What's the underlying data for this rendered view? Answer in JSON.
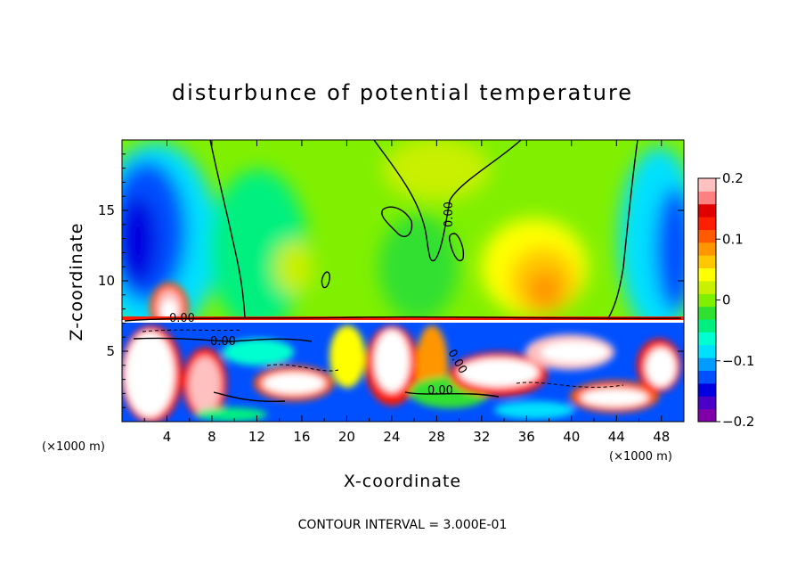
{
  "chart_data": {
    "type": "heatmap",
    "title": "disturbunce of potential temperature",
    "xlabel": "X-coordinate",
    "ylabel": "Z-coordinate",
    "x_unit": "(×1000 m)",
    "xlim": [
      0,
      50
    ],
    "ylim": [
      0,
      20
    ],
    "x_ticks": [
      "4",
      "8",
      "12",
      "16",
      "20",
      "24",
      "28",
      "32",
      "36",
      "40",
      "44",
      "48"
    ],
    "y_ticks": [
      "5",
      "10",
      "15"
    ],
    "colorbar": {
      "range": [
        -0.2,
        0.2
      ],
      "labels": [
        "0.2",
        "0.1",
        "0",
        "−0.1",
        "−0.2"
      ],
      "colors": [
        "#7f00a8",
        "#4b00c8",
        "#0000e0",
        "#0050ff",
        "#009cff",
        "#00e0ff",
        "#00ffd0",
        "#00f080",
        "#30e030",
        "#80f000",
        "#c8f000",
        "#ffff00",
        "#ffc800",
        "#ff9600",
        "#ff5a00",
        "#ff1e00",
        "#e00000",
        "#ff8080",
        "#ffc0c0"
      ]
    },
    "contour_labels": [
      "0.00",
      "0.00",
      "0.00",
      "0.00",
      "0.00"
    ],
    "contour_interval": "CONTOUR INTERVAL = 3.000E-01"
  }
}
